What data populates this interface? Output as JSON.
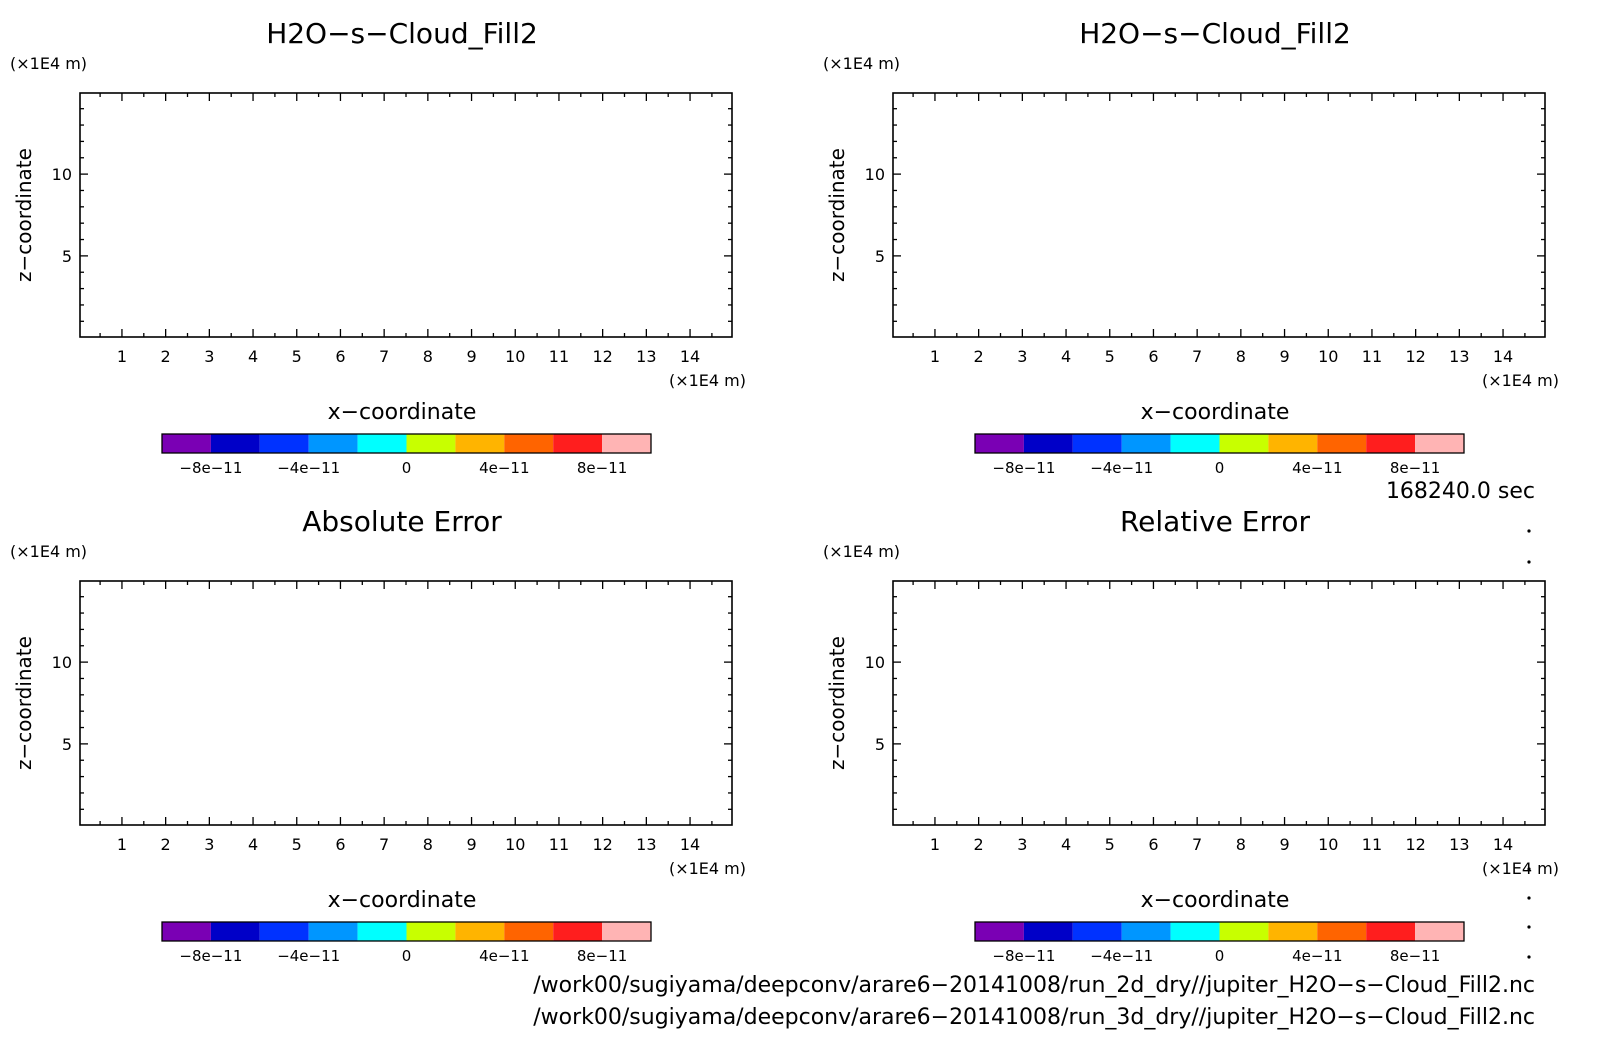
{
  "chart_data": [
    {
      "type": "heatmap",
      "title": "H2O−s−Cloud_Fill2",
      "xlabel": "x−coordinate",
      "ylabel": "z−coordinate",
      "x_unit": "(×1E4 m)",
      "y_unit": "(×1E4 m)",
      "xlim": [
        0.04,
        14.96
      ],
      "ylim": [
        0.04,
        14.96
      ],
      "x_ticks": [
        "1",
        "2",
        "3",
        "4",
        "5",
        "6",
        "7",
        "8",
        "9",
        "10",
        "11",
        "12",
        "13",
        "14"
      ],
      "y_ticks": [
        "5",
        "10"
      ],
      "values": [],
      "colorbar": {
        "colors": [
          "#7a00b4",
          "#0000c8",
          "#0032ff",
          "#0096ff",
          "#00ffff",
          "#c8ff00",
          "#ffb400",
          "#ff6400",
          "#ff1e1e",
          "#ffb4b4"
        ],
        "boundaries": [
          -1e-10,
          -8e-11,
          -6e-11,
          -4e-11,
          -2e-11,
          0,
          2e-11,
          4e-11,
          6e-11,
          8e-11,
          1e-10
        ],
        "labels": [
          "−8e−11",
          "−4e−11",
          "0",
          "4e−11",
          "8e−11"
        ]
      }
    },
    {
      "type": "heatmap",
      "title": "H2O−s−Cloud_Fill2",
      "xlabel": "x−coordinate",
      "ylabel": "z−coordinate",
      "x_unit": "(×1E4 m)",
      "y_unit": "(×1E4 m)",
      "xlim": [
        0.04,
        14.96
      ],
      "ylim": [
        0.04,
        14.96
      ],
      "x_ticks": [
        "1",
        "2",
        "3",
        "4",
        "5",
        "6",
        "7",
        "8",
        "9",
        "10",
        "11",
        "12",
        "13",
        "14"
      ],
      "y_ticks": [
        "5",
        "10"
      ],
      "values": [],
      "colorbar": {
        "colors": [
          "#7a00b4",
          "#0000c8",
          "#0032ff",
          "#0096ff",
          "#00ffff",
          "#c8ff00",
          "#ffb400",
          "#ff6400",
          "#ff1e1e",
          "#ffb4b4"
        ],
        "boundaries": [
          -1e-10,
          -8e-11,
          -6e-11,
          -4e-11,
          -2e-11,
          0,
          2e-11,
          4e-11,
          6e-11,
          8e-11,
          1e-10
        ],
        "labels": [
          "−8e−11",
          "−4e−11",
          "0",
          "4e−11",
          "8e−11"
        ]
      }
    },
    {
      "type": "heatmap",
      "title": "Absolute Error",
      "xlabel": "x−coordinate",
      "ylabel": "z−coordinate",
      "x_unit": "(×1E4 m)",
      "y_unit": "(×1E4 m)",
      "xlim": [
        0.04,
        14.96
      ],
      "ylim": [
        0.04,
        14.96
      ],
      "x_ticks": [
        "1",
        "2",
        "3",
        "4",
        "5",
        "6",
        "7",
        "8",
        "9",
        "10",
        "11",
        "12",
        "13",
        "14"
      ],
      "y_ticks": [
        "5",
        "10"
      ],
      "values": [],
      "colorbar": {
        "colors": [
          "#7a00b4",
          "#0000c8",
          "#0032ff",
          "#0096ff",
          "#00ffff",
          "#c8ff00",
          "#ffb400",
          "#ff6400",
          "#ff1e1e",
          "#ffb4b4"
        ],
        "boundaries": [
          -1e-10,
          -8e-11,
          -6e-11,
          -4e-11,
          -2e-11,
          0,
          2e-11,
          4e-11,
          6e-11,
          8e-11,
          1e-10
        ],
        "labels": [
          "−8e−11",
          "−4e−11",
          "0",
          "4e−11",
          "8e−11"
        ]
      }
    },
    {
      "type": "heatmap",
      "title": "Relative Error",
      "xlabel": "x−coordinate",
      "ylabel": "z−coordinate",
      "x_unit": "(×1E4 m)",
      "y_unit": "(×1E4 m)",
      "xlim": [
        0.04,
        14.96
      ],
      "ylim": [
        0.04,
        14.96
      ],
      "x_ticks": [
        "1",
        "2",
        "3",
        "4",
        "5",
        "6",
        "7",
        "8",
        "9",
        "10",
        "11",
        "12",
        "13",
        "14"
      ],
      "y_ticks": [
        "5",
        "10"
      ],
      "values": [],
      "colorbar": {
        "colors": [
          "#7a00b4",
          "#0000c8",
          "#0032ff",
          "#0096ff",
          "#00ffff",
          "#c8ff00",
          "#ffb400",
          "#ff6400",
          "#ff1e1e",
          "#ffb4b4"
        ],
        "boundaries": [
          -1e-10,
          -8e-11,
          -6e-11,
          -4e-11,
          -2e-11,
          0,
          2e-11,
          4e-11,
          6e-11,
          8e-11,
          1e-10
        ],
        "labels": [
          "−8e−11",
          "−4e−11",
          "0",
          "4e−11",
          "8e−11"
        ]
      }
    }
  ],
  "annotations": {
    "time": "168240.0 sec",
    "file_paths": [
      "/work00/sugiyama/deepconv/arare6−20141008/run_2d_dry//jupiter_H2O−s−Cloud_Fill2.nc",
      "/work00/sugiyama/deepconv/arare6−20141008/run_3d_dry//jupiter_H2O−s−Cloud_Fill2.nc"
    ]
  }
}
